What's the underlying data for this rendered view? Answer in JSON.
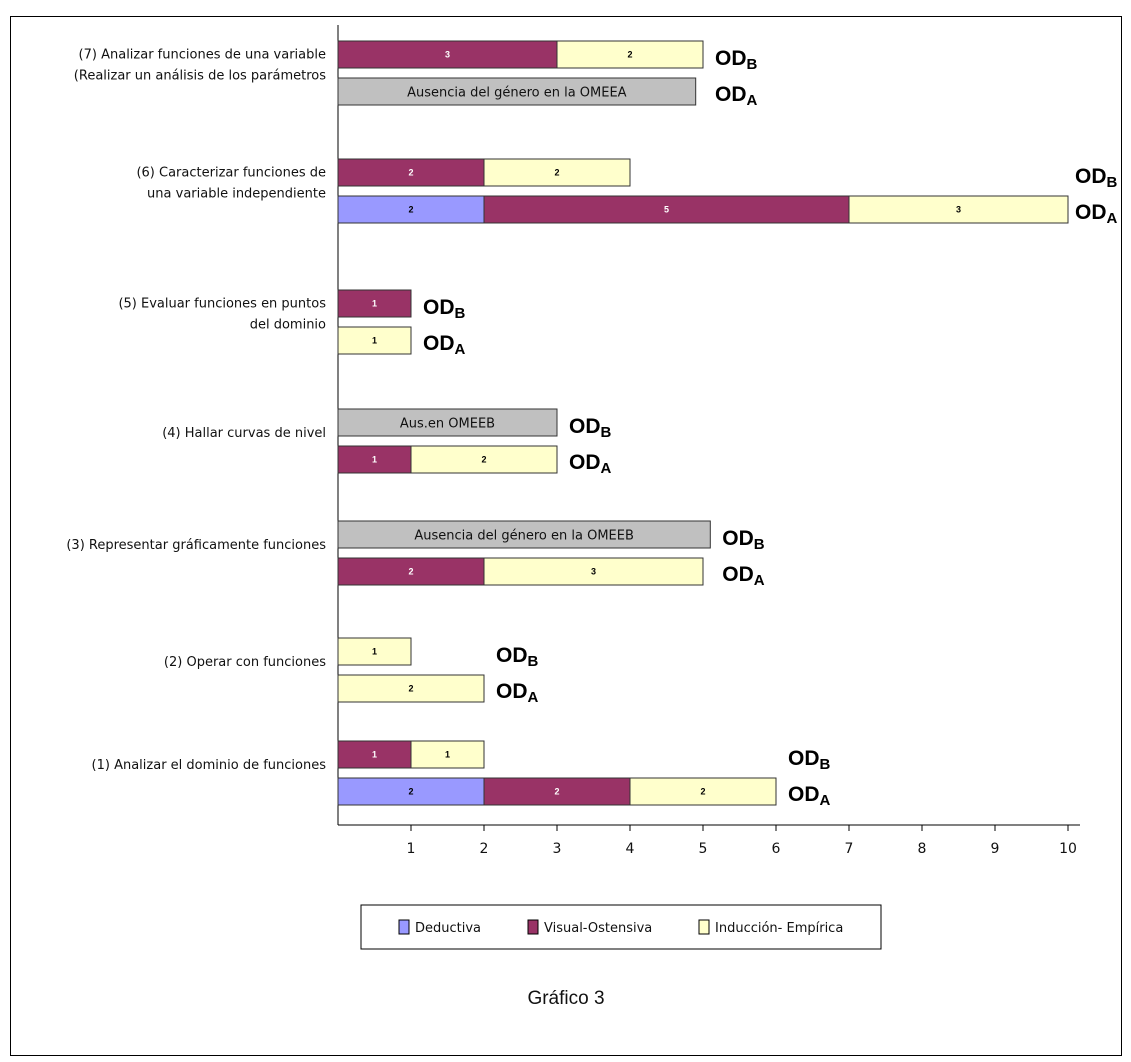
{
  "chart_data": {
    "type": "bar",
    "orientation": "horizontal",
    "stacked": true,
    "xlim": [
      0,
      10
    ],
    "x_ticks": [
      "1",
      "2",
      "3",
      "4",
      "5",
      "6",
      "7",
      "8",
      "9",
      "10"
    ],
    "legend": {
      "position": "bottom",
      "entries": [
        {
          "name": "Deductiva",
          "color": "#9999ff"
        },
        {
          "name": "Visual-Ostensiva",
          "color": "#993366"
        },
        {
          "name": "Inducción- Empírica",
          "color": "#ffffcc"
        }
      ]
    },
    "absent_color": "#c0c0c0",
    "categories": [
      {
        "lines": [
          "(7) Analizar funciones de una variable",
          "(Realizar un análisis de  los parámetros"
        ],
        "od_b": {
          "segments": [
            [
              1,
              3
            ],
            [
              2,
              2
            ]
          ],
          "absent_text": ""
        },
        "od_a": {
          "segments": [],
          "absent_text": "Ausencia del género en la OMEEA",
          "absent_length": 4.9
        }
      },
      {
        "lines": [
          "(6) Caracterizar funciones de",
          "una variable independiente"
        ],
        "od_b": {
          "segments": [
            [
              1,
              2
            ],
            [
              2,
              2
            ]
          ],
          "absent_text": ""
        },
        "od_a": {
          "segments": [
            [
              0,
              2
            ],
            [
              1,
              5
            ],
            [
              2,
              3
            ]
          ],
          "absent_text": ""
        }
      },
      {
        "lines": [
          "(5) Evaluar funciones en puntos",
          "del dominio"
        ],
        "od_b": {
          "segments": [
            [
              1,
              1
            ]
          ],
          "absent_text": ""
        },
        "od_a": {
          "segments": [
            [
              2,
              1
            ]
          ],
          "absent_text": ""
        }
      },
      {
        "lines": [
          "(4) Hallar curvas de nivel"
        ],
        "od_b": {
          "segments": [],
          "absent_text": "Aus.en  OMEEB",
          "absent_length": 3
        },
        "od_a": {
          "segments": [
            [
              1,
              1
            ],
            [
              2,
              2
            ]
          ],
          "absent_text": ""
        }
      },
      {
        "lines": [
          "(3) Representar gráficamente funciones"
        ],
        "od_b": {
          "segments": [],
          "absent_text": "Ausencia del género en la OMEEB",
          "absent_length": 5.1
        },
        "od_a": {
          "segments": [
            [
              1,
              2
            ],
            [
              2,
              3
            ]
          ],
          "absent_text": ""
        }
      },
      {
        "lines": [
          "(2) Operar con funciones"
        ],
        "od_b": {
          "segments": [
            [
              2,
              1
            ]
          ],
          "absent_text": ""
        },
        "od_a": {
          "segments": [
            [
              2,
              2
            ]
          ],
          "absent_text": ""
        }
      },
      {
        "lines": [
          "(1) Analizar el dominio de funciones"
        ],
        "od_b": {
          "segments": [
            [
              1,
              1
            ],
            [
              2,
              1
            ]
          ],
          "absent_text": ""
        },
        "od_a": {
          "segments": [
            [
              0,
              2
            ],
            [
              1,
              2
            ],
            [
              2,
              2
            ]
          ],
          "absent_text": ""
        }
      }
    ],
    "od_labels": {
      "b": "OD",
      "b_sub": "B",
      "a": "OD",
      "a_sub": "A"
    },
    "caption": "Gráfico 3"
  }
}
